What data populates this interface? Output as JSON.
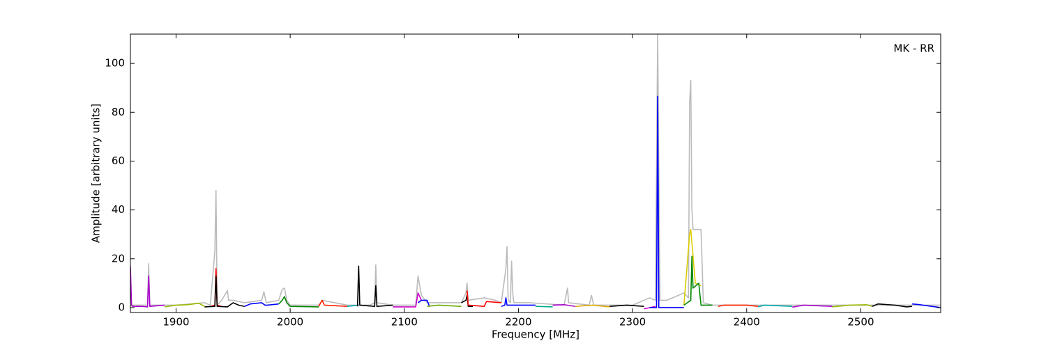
{
  "chart_data": {
    "type": "line",
    "annotation": "MK - RR",
    "xlabel": "Frequency [MHz]",
    "ylabel": "Amplitude [arbitrary units]",
    "xlim": [
      1860,
      2570
    ],
    "ylim": [
      -2,
      112
    ],
    "xticks": [
      1900,
      2000,
      2100,
      2200,
      2300,
      2400,
      2500
    ],
    "yticks": [
      0,
      20,
      40,
      60,
      80,
      100
    ],
    "series": [
      {
        "color": "#bbbbbb",
        "x": [
          1860,
          1875,
          1876,
          1877,
          1900,
          1925,
          1930,
          1934,
          1935,
          1936,
          1940,
          1945,
          1946,
          1950,
          1960,
          1975,
          1977,
          1979,
          1990,
          1993,
          1995,
          1997,
          2000,
          2025,
          2028,
          2050,
          2060,
          2070,
          2074,
          2075,
          2076,
          2090,
          2110,
          2112,
          2115,
          2120,
          2150,
          2154,
          2155,
          2156,
          2170,
          2180,
          2185,
          2189,
          2190,
          2191,
          2193,
          2194,
          2195,
          2196,
          2210,
          2240,
          2243,
          2244,
          2262,
          2264,
          2266,
          2300,
          2315,
          2320,
          2322,
          2324,
          2330,
          2345,
          2349,
          2350,
          2351,
          2352,
          2353,
          2355,
          2358,
          2360,
          2362,
          2370,
          2400,
          2570
        ],
        "values": [
          1,
          1,
          18,
          1,
          1,
          2,
          1,
          23,
          48,
          1,
          3,
          7,
          3,
          3,
          2,
          3,
          6.5,
          2,
          3,
          7.5,
          8,
          3,
          1,
          1,
          3,
          1,
          1,
          1,
          2,
          17.5,
          2,
          1,
          1,
          13,
          5,
          2,
          2,
          6,
          10,
          3,
          4,
          3,
          2,
          16,
          25,
          3,
          2,
          19,
          6,
          2,
          2,
          1,
          8,
          2,
          1,
          5,
          1,
          1,
          4,
          3,
          112,
          3,
          3,
          6,
          4,
          84,
          93,
          40,
          32,
          32,
          32,
          32,
          2,
          1,
          1,
          1
        ]
      },
      {
        "color": "#aa00cc",
        "x": [
          1860,
          1861,
          1862,
          1870,
          1875,
          1876,
          1877,
          1890
        ],
        "values": [
          17,
          1,
          0.5,
          0.5,
          0.3,
          13,
          0.5,
          1
        ]
      },
      {
        "color": "#99bb00",
        "x": [
          1890,
          1900,
          1910,
          1920,
          1925
        ],
        "values": [
          0.3,
          1,
          1.2,
          1.8,
          0.5
        ]
      },
      {
        "color": "#ff0000",
        "x": [
          1930,
          1934,
          1935,
          1936,
          1940
        ],
        "values": [
          0.5,
          1,
          16,
          1,
          0.5
        ]
      },
      {
        "color": "#000000",
        "x": [
          1925,
          1934,
          1935,
          1936,
          1945,
          1950,
          1955,
          1960
        ],
        "values": [
          0.3,
          0.5,
          13,
          0.5,
          0.3,
          2,
          1,
          0.5
        ]
      },
      {
        "color": "#0000ff",
        "x": [
          1960,
          1965,
          1975,
          1978,
          1980,
          1990
        ],
        "values": [
          0.5,
          1.5,
          2,
          1,
          1,
          1.5
        ]
      },
      {
        "color": "#008800",
        "x": [
          1990,
          1993,
          1995,
          1997,
          2000,
          2025
        ],
        "values": [
          1.5,
          3,
          4.5,
          2,
          0.5,
          0.3
        ]
      },
      {
        "color": "#ff2200",
        "x": [
          2025,
          2028,
          2030,
          2050
        ],
        "values": [
          0.5,
          3,
          1,
          0.5
        ]
      },
      {
        "color": "#00aaaa",
        "x": [
          2050,
          2060
        ],
        "values": [
          0.5,
          1
        ]
      },
      {
        "color": "#000000",
        "x": [
          2059,
          2060,
          2061,
          2074,
          2075,
          2076,
          2090
        ],
        "values": [
          0.5,
          17,
          1,
          0.5,
          9,
          0.5,
          1
        ]
      },
      {
        "color": "#cc00cc",
        "x": [
          2090,
          2110,
          2112,
          2115
        ],
        "values": [
          0.3,
          0.3,
          6,
          3
        ]
      },
      {
        "color": "#0000ff",
        "x": [
          2112,
          2115,
          2120,
          2122
        ],
        "values": [
          2,
          3,
          3,
          0.5
        ]
      },
      {
        "color": "#66aa00",
        "x": [
          2120,
          2130,
          2150
        ],
        "values": [
          0.5,
          1,
          0.5
        ]
      },
      {
        "color": "#000000",
        "x": [
          2150,
          2154,
          2155,
          2156,
          2160
        ],
        "values": [
          2,
          3,
          5,
          0.5,
          0.5
        ]
      },
      {
        "color": "#ff0000",
        "x": [
          2155,
          2156,
          2170,
          2172,
          2185
        ],
        "values": [
          7,
          1,
          0.5,
          2.5,
          2
        ]
      },
      {
        "color": "#0000ff",
        "x": [
          2185,
          2188,
          2189,
          2190,
          2215
        ],
        "values": [
          0.5,
          1,
          4,
          1,
          1
        ]
      },
      {
        "color": "#00aa88",
        "x": [
          2215,
          2230
        ],
        "values": [
          0.5,
          0.3
        ]
      },
      {
        "color": "#aa00cc",
        "x": [
          2230,
          2240,
          2250
        ],
        "values": [
          1,
          1.2,
          0.5
        ]
      },
      {
        "color": "#ddaa00",
        "x": [
          2250,
          2265,
          2280
        ],
        "values": [
          0.5,
          1,
          0.3
        ]
      },
      {
        "color": "#000000",
        "x": [
          2280,
          2295,
          2310
        ],
        "values": [
          0.5,
          1,
          0.5
        ]
      },
      {
        "color": "#cc00cc",
        "x": [
          2310,
          2320
        ],
        "values": [
          -0.5,
          0.5
        ]
      },
      {
        "color": "#0000ff",
        "x": [
          2315,
          2321,
          2322,
          2323,
          2330,
          2345
        ],
        "values": [
          0,
          0,
          86.5,
          0,
          0,
          0
        ]
      },
      {
        "color": "#ddcc00",
        "x": [
          2345,
          2350,
          2351,
          2355,
          2360
        ],
        "values": [
          1,
          30,
          32,
          10,
          9
        ]
      },
      {
        "color": "#008800",
        "x": [
          2345,
          2351,
          2352,
          2353,
          2358,
          2360,
          2370
        ],
        "values": [
          1,
          3,
          21,
          8,
          10,
          1,
          1
        ]
      },
      {
        "color": "#ff2200",
        "x": [
          2375,
          2380,
          2400,
          2410
        ],
        "values": [
          0.5,
          1,
          1,
          0.5
        ]
      },
      {
        "color": "#00aaaa",
        "x": [
          2410,
          2415,
          2440
        ],
        "values": [
          0.3,
          1,
          0.5
        ]
      },
      {
        "color": "#aa00cc",
        "x": [
          2440,
          2450,
          2475
        ],
        "values": [
          0.2,
          1,
          0.5
        ]
      },
      {
        "color": "#99bb00",
        "x": [
          2475,
          2490,
          2505,
          2510
        ],
        "values": [
          0.3,
          1,
          1.2,
          0.5
        ]
      },
      {
        "color": "#000000",
        "x": [
          2510,
          2515,
          2530,
          2540,
          2545
        ],
        "values": [
          0.5,
          1.5,
          1,
          0.3,
          0.5
        ]
      },
      {
        "color": "#0000ff",
        "x": [
          2545,
          2550,
          2570
        ],
        "values": [
          1.5,
          1.3,
          0
        ]
      }
    ]
  }
}
